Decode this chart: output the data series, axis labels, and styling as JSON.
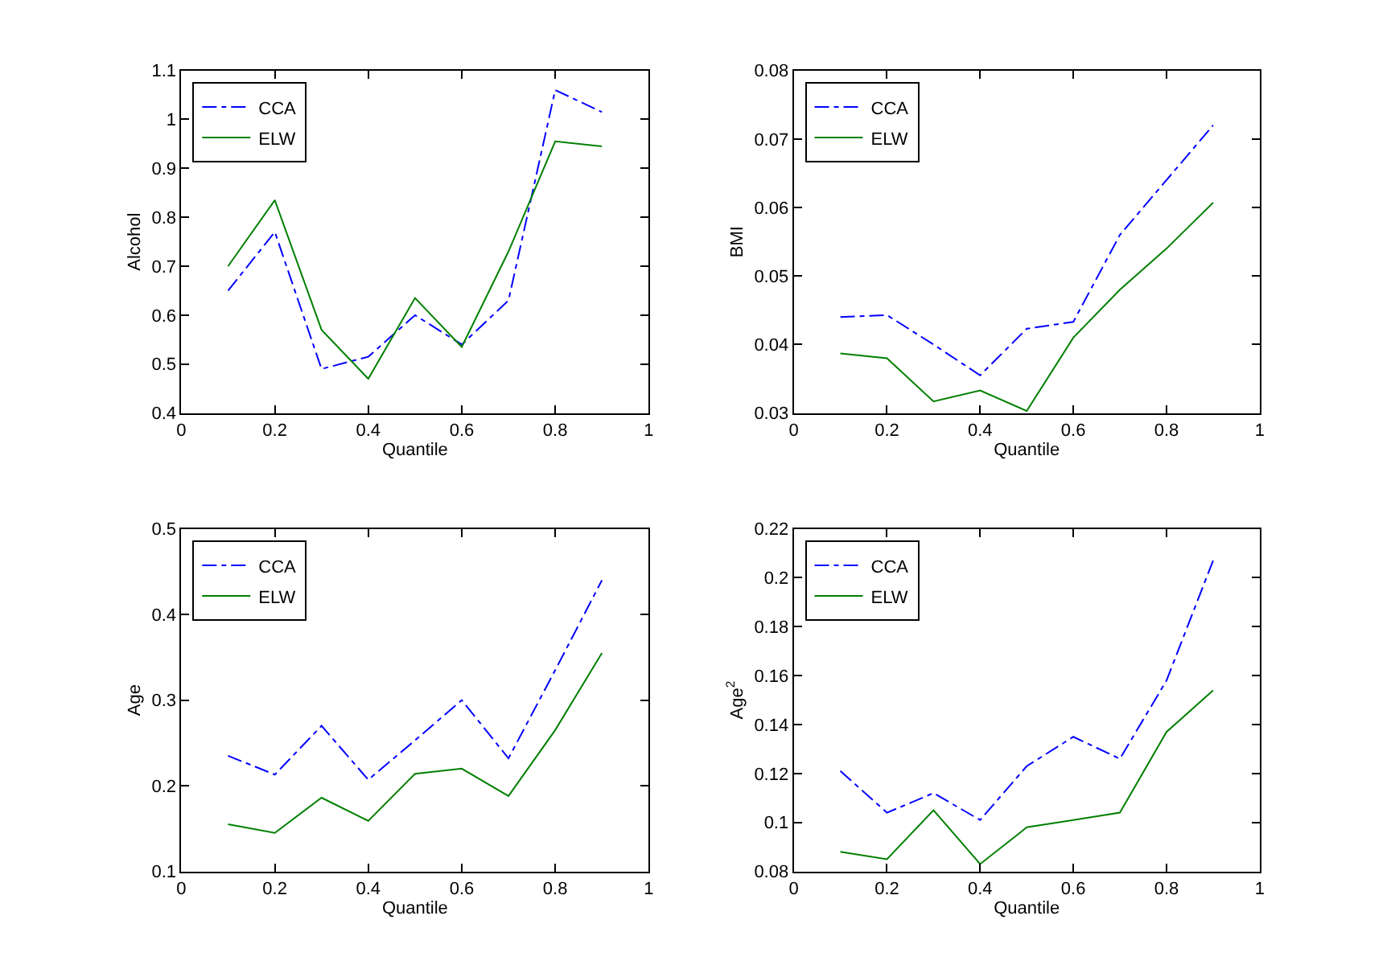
{
  "chart_data": [
    {
      "type": "line",
      "xlabel": "Quantile",
      "ylabel": "Alcohol",
      "x": [
        0.1,
        0.2,
        0.3,
        0.4,
        0.5,
        0.6,
        0.7,
        0.8,
        0.9
      ],
      "xlim": [
        0,
        1
      ],
      "xticks": [
        0,
        0.2,
        0.4,
        0.6,
        0.8,
        1
      ],
      "ylim": [
        0.4,
        1.1
      ],
      "yticks": [
        0.4,
        0.5,
        0.6,
        0.7,
        0.8,
        0.9,
        1,
        1.1
      ],
      "legend": "top left",
      "marker": "none",
      "series": [
        {
          "name": "CCA",
          "color": "#0000ff",
          "line_style": "dashdot",
          "values": [
            0.65,
            0.77,
            0.49,
            0.515,
            0.6,
            0.54,
            0.63,
            1.06,
            1.015
          ]
        },
        {
          "name": "ELW",
          "color": "#008000",
          "line_style": "solid",
          "values": [
            0.7,
            0.835,
            0.57,
            0.47,
            0.635,
            0.535,
            0.73,
            0.955,
            0.945
          ]
        }
      ]
    },
    {
      "type": "line",
      "xlabel": "Quantile",
      "ylabel": "BMI",
      "x": [
        0.1,
        0.2,
        0.3,
        0.4,
        0.5,
        0.6,
        0.7,
        0.8,
        0.9
      ],
      "xlim": [
        0,
        1
      ],
      "xticks": [
        0,
        0.2,
        0.4,
        0.6,
        0.8,
        1
      ],
      "ylim": [
        0.03,
        0.08
      ],
      "yticks": [
        0.03,
        0.04,
        0.05,
        0.06,
        0.07,
        0.08
      ],
      "legend": "top left",
      "marker": "none",
      "series": [
        {
          "name": "CCA",
          "color": "#0000ff",
          "line_style": "dashdot",
          "values": [
            0.044,
            0.0443,
            0.04,
            0.0355,
            0.0423,
            0.0433,
            0.056,
            0.064,
            0.072
          ]
        },
        {
          "name": "ELW",
          "color": "#008000",
          "line_style": "solid",
          "values": [
            0.0387,
            0.038,
            0.0317,
            0.0333,
            0.0303,
            0.041,
            0.048,
            0.054,
            0.0607
          ]
        }
      ]
    },
    {
      "type": "line",
      "xlabel": "Quantile",
      "ylabel": "Age",
      "x": [
        0.1,
        0.2,
        0.3,
        0.4,
        0.5,
        0.6,
        0.7,
        0.8,
        0.9
      ],
      "xlim": [
        0,
        1
      ],
      "xticks": [
        0,
        0.2,
        0.4,
        0.6,
        0.8,
        1
      ],
      "ylim": [
        0.1,
        0.5
      ],
      "yticks": [
        0.1,
        0.2,
        0.3,
        0.4,
        0.5
      ],
      "legend": "top left",
      "marker": "none",
      "series": [
        {
          "name": "CCA",
          "color": "#0000ff",
          "line_style": "dashdot",
          "values": [
            0.235,
            0.213,
            0.27,
            0.207,
            0.253,
            0.3,
            0.232,
            0.335,
            0.44
          ]
        },
        {
          "name": "ELW",
          "color": "#008000",
          "line_style": "solid",
          "values": [
            0.155,
            0.145,
            0.186,
            0.159,
            0.214,
            0.22,
            0.188,
            0.265,
            0.355
          ]
        }
      ]
    },
    {
      "type": "line",
      "xlabel": "Quantile",
      "ylabel": "Age$^{2}$",
      "x": [
        0.1,
        0.2,
        0.3,
        0.4,
        0.5,
        0.6,
        0.7,
        0.8,
        0.9
      ],
      "xlim": [
        0,
        1
      ],
      "xticks": [
        0,
        0.2,
        0.4,
        0.6,
        0.8,
        1
      ],
      "ylim": [
        0.08,
        0.22
      ],
      "yticks": [
        0.08,
        0.1,
        0.12,
        0.14,
        0.16,
        0.18,
        0.2,
        0.22
      ],
      "legend": "top left",
      "marker": "none",
      "series": [
        {
          "name": "CCA",
          "color": "#0000ff",
          "line_style": "dashdot",
          "values": [
            0.121,
            0.104,
            0.112,
            0.101,
            0.123,
            0.135,
            0.126,
            0.158,
            0.207
          ]
        },
        {
          "name": "ELW",
          "color": "#008000",
          "line_style": "solid",
          "values": [
            0.088,
            0.085,
            0.105,
            0.083,
            0.098,
            0.101,
            0.104,
            0.137,
            0.154
          ]
        }
      ]
    }
  ]
}
